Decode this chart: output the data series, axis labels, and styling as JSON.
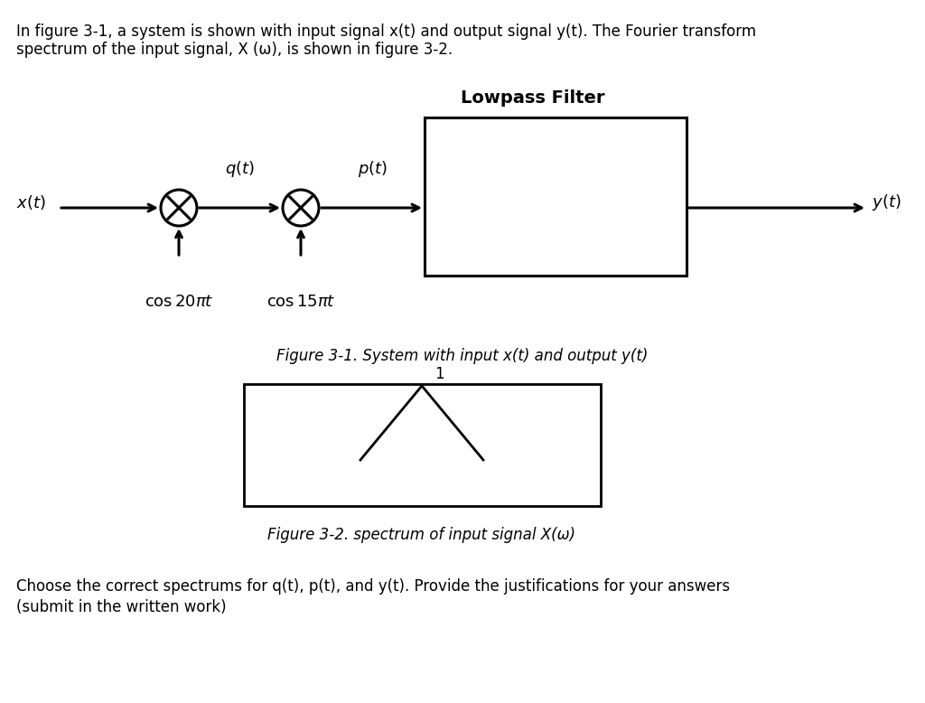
{
  "bg_color": "#ffffff",
  "text_color": "#000000",
  "top_line1": "In figure 3-1, a system is shown with input signal x(t) and output signal y(t). The Fourier transform",
  "top_line2": "spectrum of the input signal, X (ω), is shown in figure 3-2.",
  "lp_title": "Lowpass Filter",
  "fig1_caption": "Figure 3-1. System with input x(t) and output y(t)",
  "fig2_caption": "Figure 3-2. spectrum of input signal X(ω)",
  "bottom_line1": "Choose the correct spectrums for q(t), p(t), and y(t). Provide the justifications for your answers",
  "bottom_line2": "(submit in the written work)"
}
